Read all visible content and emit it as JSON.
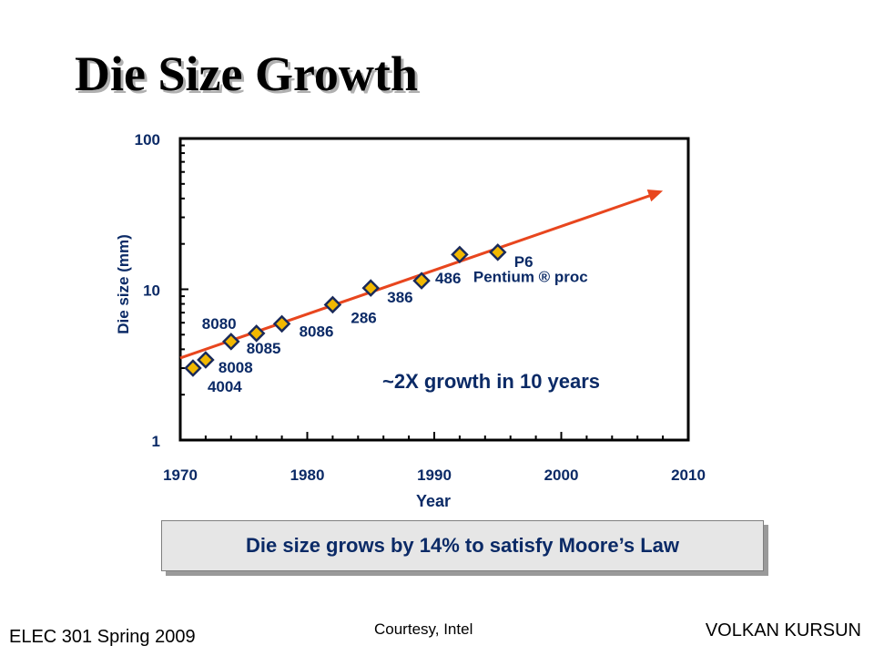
{
  "slide": {
    "title": "Die Size Growth",
    "callout": "Die size grows by 14% to satisfy Moore’s Law",
    "footer_left": "ELEC 301 Spring 2009",
    "footer_center": "Courtesy, Intel",
    "footer_right": "VOLKAN KURSUN"
  },
  "chart_data": {
    "type": "scatter",
    "xlabel": "Year",
    "ylabel": "Die size (mm)",
    "xlim": [
      1970,
      2010
    ],
    "ylim": [
      1,
      100
    ],
    "yscale": "log",
    "x_ticks": [
      1970,
      1980,
      1990,
      2000,
      2010
    ],
    "y_ticks": [
      1,
      10,
      100
    ],
    "grid": false,
    "points": [
      {
        "label": "4004",
        "x": 1971,
        "y": 3.0
      },
      {
        "label": "8008",
        "x": 1972,
        "y": 3.4
      },
      {
        "label": "8080",
        "x": 1974,
        "y": 4.5
      },
      {
        "label": "8085",
        "x": 1976,
        "y": 5.1
      },
      {
        "label": "8086",
        "x": 1978,
        "y": 5.9
      },
      {
        "label": "286",
        "x": 1982,
        "y": 7.9
      },
      {
        "label": "386",
        "x": 1985,
        "y": 10.2
      },
      {
        "label": "486",
        "x": 1989,
        "y": 11.4
      },
      {
        "label": "Pentium ® proc",
        "x": 1992,
        "y": 17.0
      },
      {
        "label": "P6",
        "x": 1995,
        "y": 17.6
      }
    ],
    "trend": {
      "x": [
        1970,
        2008
      ],
      "y": [
        3.5,
        45
      ]
    },
    "annotation": "~2X growth in 10 years",
    "colors": {
      "marker_fill": "#f2b800",
      "marker_edge": "#1a2a5a",
      "trend": "#e8461e",
      "label": "#0b2a66",
      "axis": "#000000"
    }
  }
}
